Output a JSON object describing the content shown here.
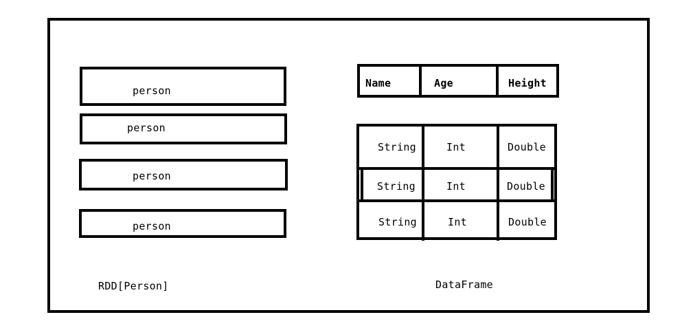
{
  "rdd": {
    "items": [
      {
        "label": "person"
      },
      {
        "label": "person"
      },
      {
        "label": "person"
      },
      {
        "label": "person"
      }
    ],
    "caption": "RDD[Person]"
  },
  "dataframe": {
    "headers": [
      "Name",
      "Age",
      "Height"
    ],
    "rows": [
      [
        "String",
        "Int",
        "Double"
      ],
      [
        "String",
        "Int",
        "Double"
      ],
      [
        "String",
        "Int",
        "Double"
      ]
    ],
    "caption": "DataFrame"
  }
}
